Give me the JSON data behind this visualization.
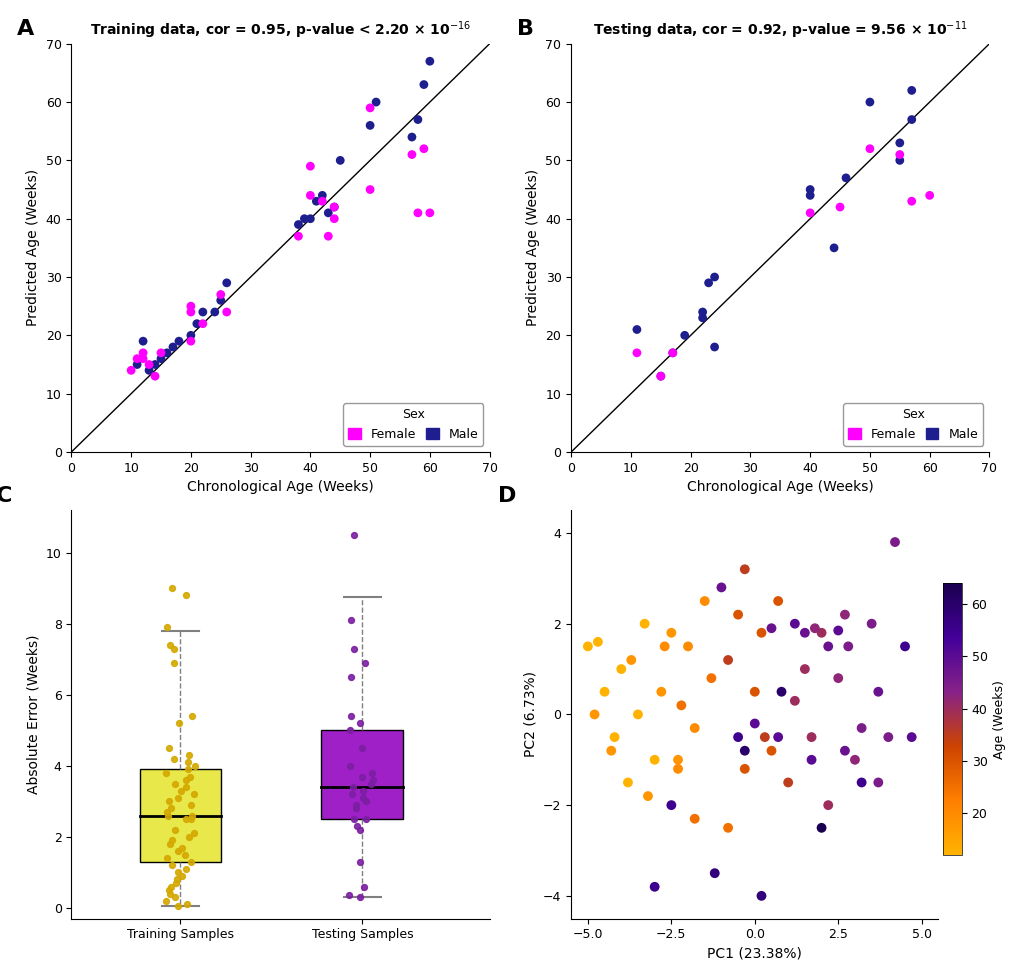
{
  "xlabel_scatter": "Chronological Age (Weeks)",
  "ylabel_scatter": "Predicted Age (Weeks)",
  "scatter_xlim": [
    0,
    70
  ],
  "scatter_ylim": [
    0,
    70
  ],
  "scatter_xticks": [
    0,
    10,
    20,
    30,
    40,
    50,
    60,
    70
  ],
  "scatter_yticks": [
    0,
    10,
    20,
    30,
    40,
    50,
    60,
    70
  ],
  "female_color": "#FF00FF",
  "male_color": "#1E1E8F",
  "train_female_x": [
    10,
    11,
    12,
    12,
    13,
    14,
    15,
    20,
    20,
    20,
    22,
    25,
    26,
    38,
    40,
    40,
    42,
    43,
    44,
    44,
    50,
    50,
    57,
    58,
    59,
    60
  ],
  "train_female_y": [
    14,
    16,
    17,
    16,
    15,
    13,
    17,
    19,
    24,
    25,
    22,
    27,
    24,
    37,
    44,
    49,
    43,
    37,
    40,
    42,
    45,
    59,
    51,
    41,
    52,
    41
  ],
  "train_male_x": [
    11,
    12,
    13,
    14,
    15,
    16,
    17,
    18,
    20,
    21,
    22,
    24,
    25,
    26,
    38,
    39,
    40,
    41,
    42,
    43,
    44,
    45,
    50,
    51,
    57,
    58,
    59,
    60
  ],
  "train_male_y": [
    15,
    19,
    14,
    15,
    16,
    17,
    18,
    19,
    20,
    22,
    24,
    24,
    26,
    29,
    39,
    40,
    40,
    43,
    44,
    41,
    42,
    50,
    56,
    60,
    54,
    57,
    63,
    67
  ],
  "test_female_x": [
    11,
    15,
    17,
    40,
    45,
    50,
    55,
    57,
    60
  ],
  "test_female_y": [
    17,
    13,
    17,
    41,
    42,
    52,
    51,
    43,
    44
  ],
  "test_male_x": [
    11,
    15,
    17,
    19,
    22,
    22,
    23,
    24,
    24,
    40,
    40,
    44,
    46,
    50,
    55,
    55,
    57,
    57
  ],
  "test_male_y": [
    21,
    13,
    17,
    20,
    23,
    24,
    29,
    18,
    30,
    45,
    44,
    35,
    47,
    60,
    53,
    50,
    57,
    62
  ],
  "train_errors": [
    0.05,
    0.1,
    0.2,
    0.3,
    0.4,
    0.5,
    0.6,
    0.7,
    0.8,
    0.9,
    1.0,
    1.1,
    1.2,
    1.3,
    1.4,
    1.5,
    1.6,
    1.7,
    1.8,
    1.9,
    2.0,
    2.1,
    2.2,
    2.5,
    2.5,
    2.6,
    2.6,
    2.7,
    2.8,
    2.9,
    3.0,
    3.1,
    3.2,
    3.3,
    3.4,
    3.5,
    3.6,
    3.7,
    3.8,
    3.9,
    4.0,
    4.1,
    4.2,
    4.3,
    4.5,
    5.2,
    5.4,
    6.9,
    7.3,
    7.4,
    7.9,
    8.8,
    9.0
  ],
  "test_errors": [
    0.3,
    0.35,
    0.6,
    1.3,
    2.2,
    2.3,
    2.5,
    2.5,
    2.8,
    2.9,
    3.0,
    3.1,
    3.2,
    3.3,
    3.4,
    3.5,
    3.6,
    3.7,
    3.8,
    4.0,
    4.5,
    5.0,
    5.2,
    5.4,
    6.5,
    6.9,
    7.3,
    8.1,
    10.5
  ],
  "box_train_color": "#E8E84A",
  "box_test_color": "#A020C8",
  "box_ylabel": "Absolute Error (Weeks)",
  "box_xtick_labels": [
    "Training Samples",
    "Testing Samples"
  ],
  "box_yticks": [
    0,
    2,
    4,
    6,
    8,
    10
  ],
  "pc1_label": "PC1 (23.38%)",
  "pc2_label": "PC2 (6.73%)",
  "pc_xlim": [
    -5.8,
    5.8
  ],
  "pc_ylim": [
    -4.5,
    4.5
  ],
  "pc_xticks": [
    -5.0,
    -2.5,
    0.0,
    2.5,
    5.0
  ],
  "pc_yticks": [
    -4,
    -2,
    0,
    2,
    4
  ],
  "pca_age_min": 12,
  "pca_age_max": 64,
  "pca_colorbar_ticks": [
    20,
    30,
    40,
    50,
    60
  ],
  "pca_colorbar_label": "Age (Weeks)",
  "pca_x": [
    -5.0,
    -4.7,
    -4.5,
    -4.2,
    -4.0,
    -3.8,
    -3.5,
    -3.3,
    -3.0,
    -4.8,
    -4.3,
    -3.7,
    -3.2,
    -2.8,
    -2.5,
    -2.3,
    -2.7,
    -2.3,
    -2.0,
    -1.8,
    -1.5,
    -2.2,
    -1.8,
    -1.3,
    -0.8,
    -0.5,
    -0.3,
    0.0,
    0.2,
    0.5,
    0.7,
    0.3,
    -0.8,
    1.0,
    -0.3,
    1.2,
    1.5,
    1.7,
    2.0,
    2.2,
    1.8,
    2.5,
    2.7,
    3.0,
    2.8,
    3.2,
    3.5,
    3.7,
    4.0,
    4.2,
    -1.0,
    0.5,
    1.5,
    2.2,
    2.7,
    3.7,
    0.0,
    0.7,
    1.2,
    1.7,
    2.5,
    4.7,
    -0.5,
    3.2,
    4.5,
    -3.0,
    -2.5,
    0.2,
    -1.2,
    0.8,
    -0.3,
    2.0
  ],
  "pca_y": [
    1.5,
    1.6,
    0.5,
    -0.5,
    1.0,
    -1.5,
    0.0,
    2.0,
    -1.0,
    0.0,
    -0.8,
    1.2,
    -1.8,
    0.5,
    1.8,
    -1.0,
    1.5,
    -1.2,
    1.5,
    -0.3,
    2.5,
    0.2,
    -2.3,
    0.8,
    -2.5,
    2.2,
    -1.2,
    0.5,
    1.8,
    -0.8,
    2.5,
    -0.5,
    1.2,
    -1.5,
    3.2,
    0.3,
    1.0,
    -0.5,
    1.8,
    -2.0,
    1.9,
    0.8,
    2.2,
    -1.0,
    1.5,
    -0.3,
    2.0,
    -1.5,
    -0.5,
    3.8,
    2.8,
    1.9,
    1.8,
    1.5,
    -0.8,
    0.5,
    -0.2,
    -0.5,
    2.0,
    -1.0,
    1.85,
    -0.5,
    -0.5,
    -1.5,
    1.5,
    -3.8,
    -2.0,
    -4.0,
    -3.5,
    0.5,
    -0.8,
    -2.5
  ],
  "pca_ages": [
    12,
    12,
    12,
    12,
    12,
    12,
    12,
    12,
    12,
    18,
    18,
    18,
    18,
    18,
    18,
    18,
    20,
    20,
    20,
    20,
    20,
    25,
    25,
    25,
    25,
    30,
    30,
    30,
    30,
    30,
    30,
    35,
    35,
    35,
    35,
    40,
    40,
    40,
    40,
    40,
    42,
    42,
    42,
    42,
    45,
    45,
    45,
    45,
    45,
    45,
    48,
    48,
    48,
    48,
    48,
    48,
    50,
    50,
    50,
    50,
    50,
    50,
    55,
    55,
    55,
    55,
    55,
    58,
    58,
    60,
    60,
    64
  ]
}
